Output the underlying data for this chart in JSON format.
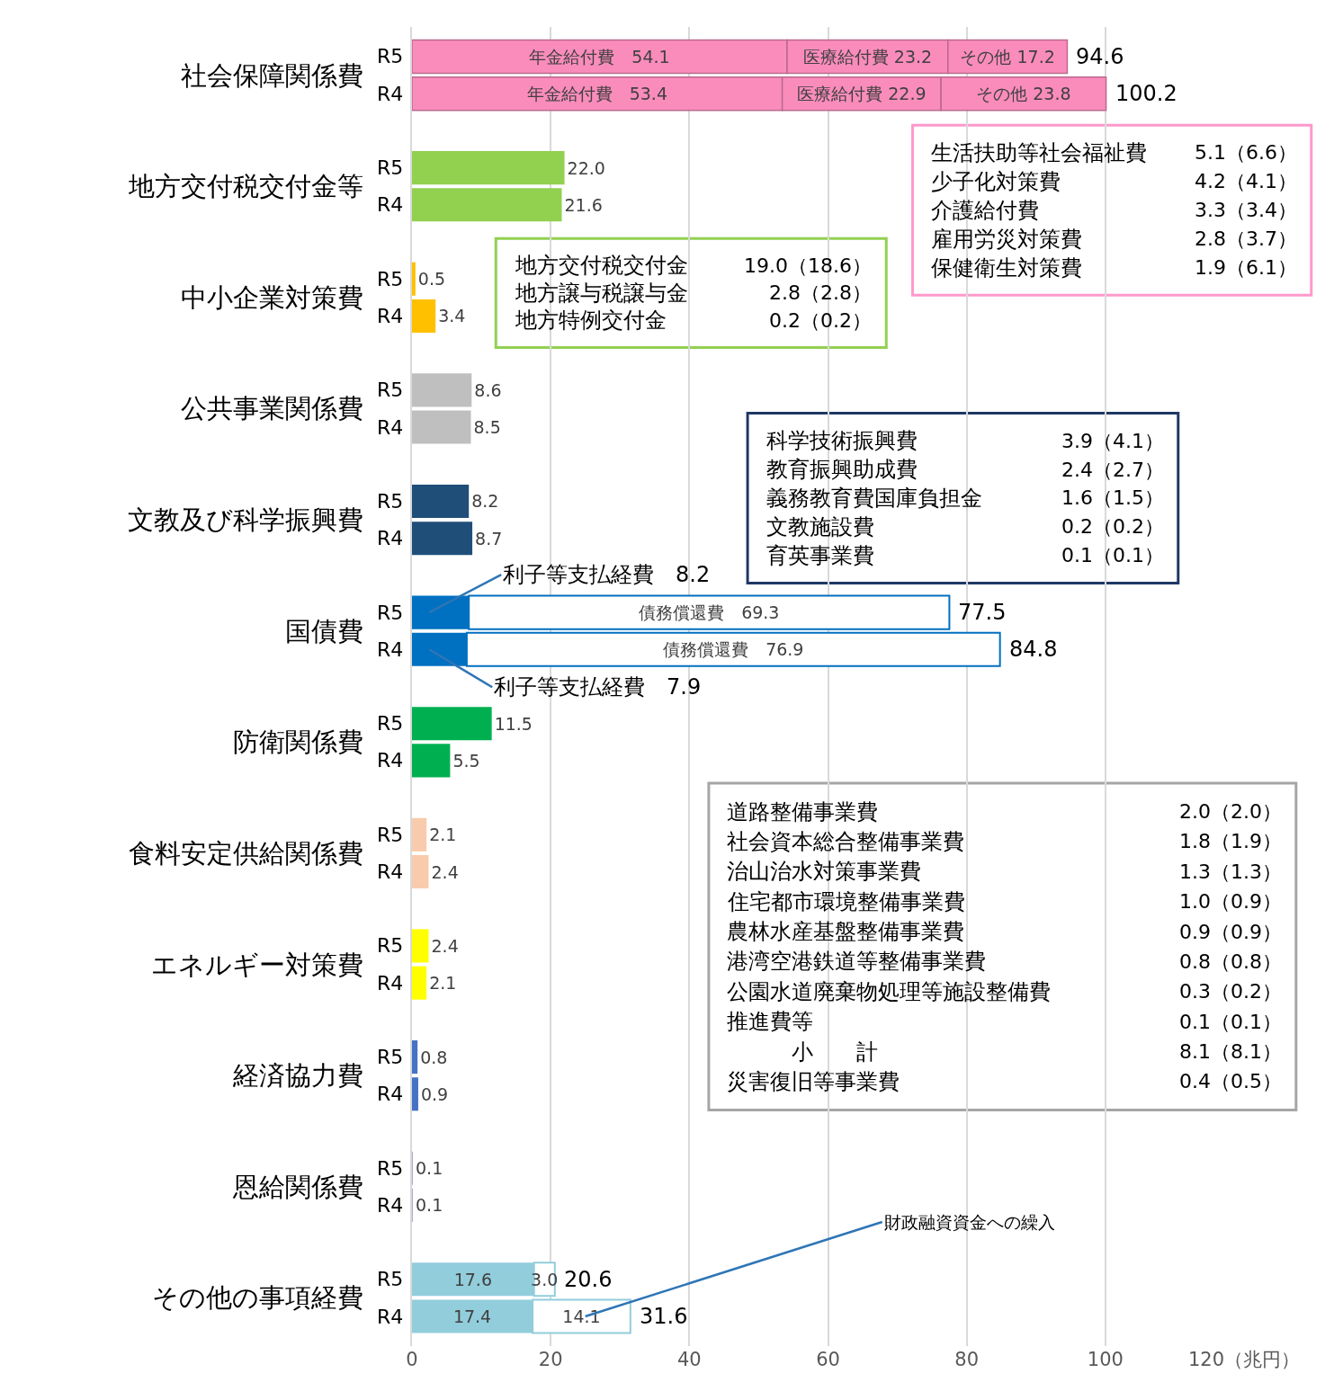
{
  "chart_data": {
    "type": "bar",
    "orientation": "horizontal",
    "stacked": true,
    "categories": [
      null,
      null,
      null,
      null,
      null,
      null,
      null,
      null,
      null,
      null,
      null,
      null,
      null,
      null,
      null,
      null,
      null,
      null,
      null,
      null,
      null,
      null,
      null,
      null
    ],
    "series": [
      {
        "colors": [
          "#fa8cbc",
          "#fa8cbc",
          "#92d050",
          "#92d050",
          "#ffc000",
          "#ffc000",
          "#bfbfbf",
          "#bfbfbf",
          "#1f4e79",
          "#1f4e79",
          "#0070c0",
          "#0070c0",
          "#00b050",
          "#00b050",
          "#f8cbad",
          "#f8cbad",
          "#ffff00",
          "#ffff00",
          "#4472c4",
          "#4472c4",
          "#b4a7d6",
          "#b4a7d6",
          "#92cddc",
          "#92cddc"
        ],
        "values": [
          54.1,
          53.4,
          22.0,
          21.6,
          0.5,
          3.4,
          8.6,
          8.5,
          8.2,
          8.7,
          8.2,
          7.9,
          11.5,
          5.5,
          2.1,
          2.4,
          2.4,
          2.1,
          0.8,
          0.9,
          0.1,
          0.1,
          17.6,
          17.4
        ],
        "value_labels": [
          "年金給付費　54.1",
          "年金給付費　53.4",
          "22.0",
          "21.6",
          "0.5",
          "3.4",
          "8.6",
          "8.5",
          "8.2",
          "8.7",
          null,
          null,
          "11.5",
          "5.5",
          "2.1",
          "2.4",
          "2.4",
          "2.1",
          "0.8",
          "0.9",
          "0.1",
          "0.1",
          "17.6",
          "17.4"
        ]
      },
      {
        "colors": [
          "#fa8cbc",
          "#fa8cbc",
          null,
          null,
          null,
          null,
          null,
          null,
          null,
          null,
          "#ffffff",
          "#ffffff",
          null,
          null,
          null,
          null,
          null,
          null,
          null,
          null,
          null,
          null,
          "#ffffff",
          "#ffffff"
        ],
        "values": [
          23.2,
          22.9,
          null,
          null,
          null,
          null,
          null,
          null,
          null,
          null,
          69.3,
          76.9,
          null,
          null,
          null,
          null,
          null,
          null,
          null,
          null,
          null,
          null,
          3.0,
          14.1
        ],
        "value_labels": [
          "医療給付費 23.2",
          "医療給付費 22.9",
          null,
          null,
          null,
          null,
          null,
          null,
          null,
          null,
          "債務償還費　69.3",
          "債務償還費　76.9",
          null,
          null,
          null,
          null,
          null,
          null,
          null,
          null,
          null,
          null,
          "3.0",
          "14.1"
        ]
      },
      {
        "colors": [
          "#fa8cbc",
          "#fa8cbc",
          null,
          null,
          null,
          null,
          null,
          null,
          null,
          null,
          null,
          null,
          null,
          null,
          null,
          null,
          null,
          null,
          null,
          null,
          null,
          null,
          null,
          null
        ],
        "values": [
          17.2,
          23.8,
          null,
          null,
          null,
          null,
          null,
          null,
          null,
          null,
          null,
          null,
          null,
          null,
          null,
          null,
          null,
          null,
          null,
          null,
          null,
          null,
          null,
          null
        ],
        "value_labels": [
          "その他 17.2",
          "その他 23.8",
          null,
          null,
          null,
          null,
          null,
          null,
          null,
          null,
          null,
          null,
          null,
          null,
          null,
          null,
          null,
          null,
          null,
          null,
          null,
          null,
          null,
          null
        ]
      }
    ],
    "totals": [
      "94.6",
      "100.2",
      null,
      null,
      null,
      null,
      null,
      null,
      null,
      null,
      "77.5",
      "84.8",
      null,
      null,
      null,
      null,
      null,
      null,
      null,
      null,
      null,
      null,
      "20.6",
      "31.6"
    ],
    "xlim": [
      0,
      120
    ],
    "xticks": [
      0,
      20,
      40,
      60,
      80,
      100,
      {
        "value": 120,
        "label": "120（兆円）"
      }
    ],
    "grid": "x",
    "annotations": [
      "社会保障関係費",
      "地方交付税交付金等",
      "中小企業対策費",
      "公共事業関係費",
      "文教及び科学振興費",
      "国債費",
      "防衛関係費",
      "食料安定供給関係費",
      "エネルギー対策費",
      "経済協力費",
      "恩給関係費",
      "その他の事項経費",
      "R5",
      "R4",
      "R5",
      "R4",
      "R5",
      "R4",
      "R5",
      "R4",
      "R5",
      "R4",
      "R5",
      "R4",
      "R5",
      "R4",
      "R5",
      "R4",
      "R5",
      "R4",
      "R5",
      "R4",
      "R5",
      "R4",
      "R5",
      "R4",
      "生活扶助等社会福祉費",
      "5.1（6.6）",
      "少子化対策費",
      "4.2（4.1）",
      "介護給付費",
      "3.3（3.4）",
      "雇用労災対策費",
      "2.8（3.7）",
      "保健衛生対策費",
      "1.9（6.1）",
      "地方交付税交付金",
      "19.0（18.6）",
      "地方譲与税譲与金",
      "2.8（2.8）",
      "地方特例交付金",
      "0.2（0.2）",
      "科学技術振興費",
      "3.9（4.1）",
      "教育振興助成費",
      "2.4（2.7）",
      "義務教育費国庫負担金",
      "1.6（1.5）",
      "文教施設費",
      "0.2（0.2）",
      "育英事業費",
      "0.1（0.1）",
      "道路整備事業費",
      "2.0（2.0）",
      "社会資本総合整備事業費",
      "1.8（1.9）",
      "治山治水対策事業費",
      "1.3（1.3）",
      "住宅都市環境整備事業費",
      "1.0（0.9）",
      "農林水産基盤整備事業費",
      "0.9（0.9）",
      "港湾空港鉄道等整備事業費",
      "0.8（0.8）",
      "公園水道廃棄物処理等施設整備費",
      "0.3（0.2）",
      "推進費等",
      "0.1（0.1）",
      "　　　小　　計",
      "8.1（8.1）",
      "災害復旧等事業費",
      "0.4（0.5）",
      "利子等支払経費　8.2",
      "利子等支払経費　7.9",
      "財政融資資金への繰入"
    ]
  }
}
